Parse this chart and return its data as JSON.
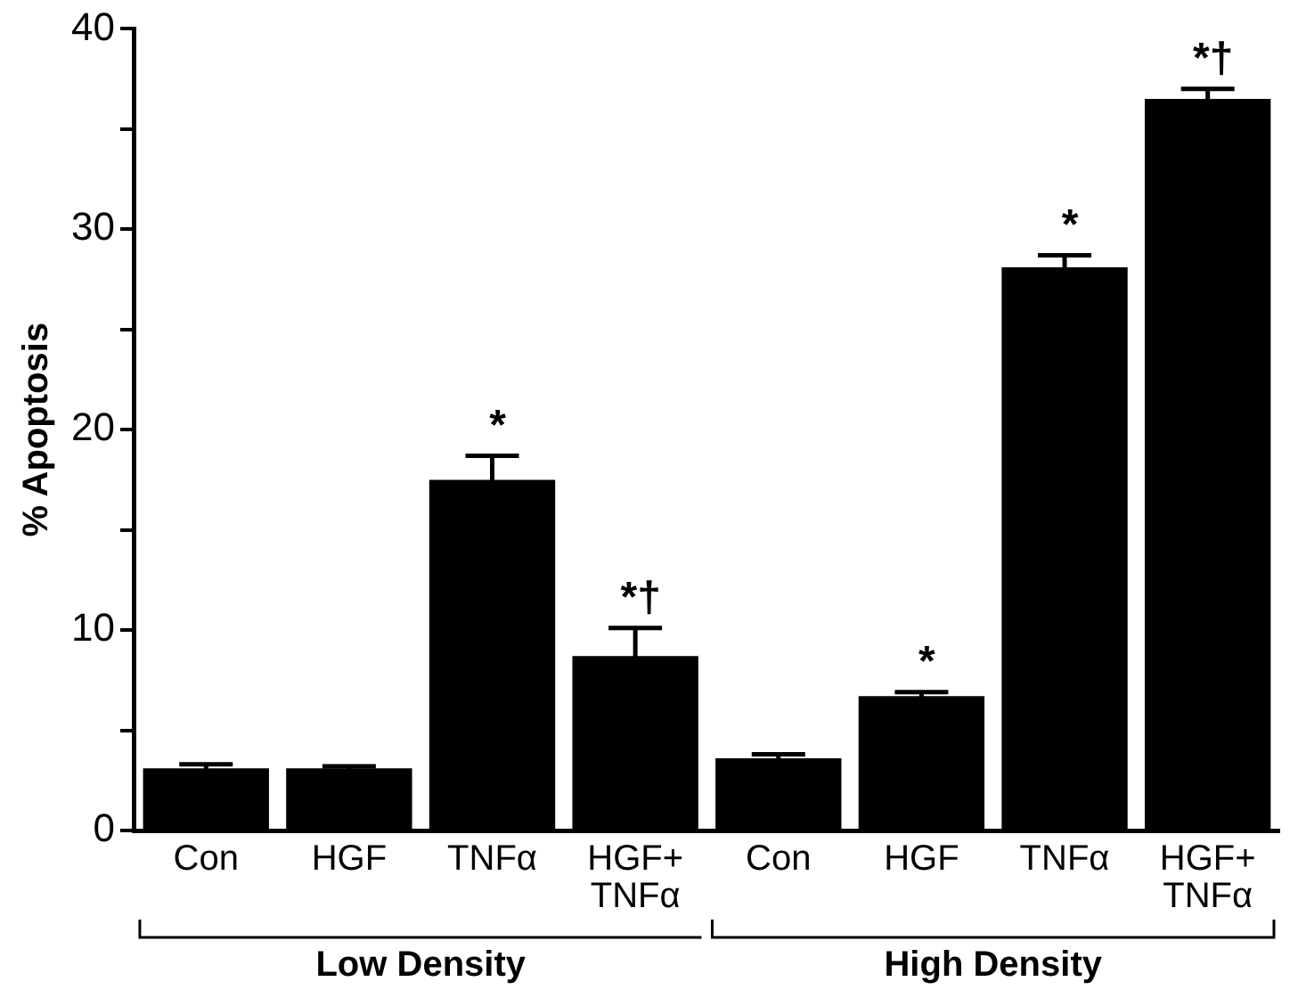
{
  "chart_data": {
    "type": "bar",
    "ylabel": "% Apoptosis",
    "categories": [
      "Con",
      "HGF",
      "TNFα",
      "HGF+\nTNFα",
      "Con",
      "HGF",
      "TNFα",
      "HGF+\nTNFα"
    ],
    "values": [
      3.1,
      3.1,
      17.5,
      8.7,
      3.6,
      6.7,
      28.1,
      36.5
    ],
    "errors": [
      0.2,
      0.1,
      1.2,
      1.4,
      0.2,
      0.2,
      0.6,
      0.5
    ],
    "value_labels": [
      null,
      null,
      "*",
      "*†",
      null,
      "*",
      "*",
      "*†"
    ],
    "color": "#000000",
    "ylim": [
      0,
      40
    ],
    "yticks": [
      0,
      {
        "value": 5,
        "label": null
      },
      10,
      {
        "value": 15,
        "label": null
      },
      20,
      {
        "value": 25,
        "label": null
      },
      30,
      {
        "value": 35,
        "label": null
      },
      40
    ],
    "annotations": [
      "Low Density",
      "High Density"
    ],
    "grid": false,
    "legend": false
  }
}
